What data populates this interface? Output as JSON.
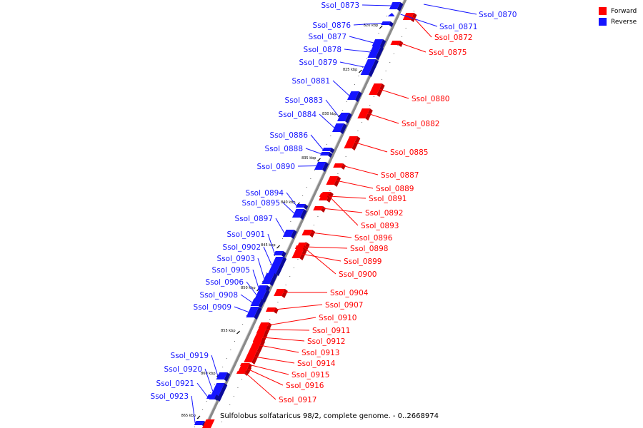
{
  "legend": {
    "forward_label": "Forward",
    "reverse_label": "Reverse",
    "forward_color": "#ff0000",
    "reverse_color": "#1515ff"
  },
  "caption": "Sulfolobus solfataricus 98/2, complete genome. - 0..2668974",
  "ticks": [
    "820 kbp",
    "825 kbp",
    "830 kbp",
    "835 kbp",
    "840 kbp",
    "845 kbp",
    "850 kbp",
    "855 kbp",
    "860 kbp",
    "865 kbp"
  ],
  "reverse_genes": [
    "Ssol_0873",
    "Ssol_0871",
    "Ssol_0870",
    "Ssol_0876",
    "Ssol_0877",
    "Ssol_0878",
    "Ssol_0879",
    "Ssol_0881",
    "Ssol_0883",
    "Ssol_0884",
    "Ssol_0886",
    "Ssol_0888",
    "Ssol_0890",
    "Ssol_0894",
    "Ssol_0895",
    "Ssol_0897",
    "Ssol_0901",
    "Ssol_0902",
    "Ssol_0903",
    "Ssol_0905",
    "Ssol_0906",
    "Ssol_0908",
    "Ssol_0909",
    "Ssol_0919",
    "Ssol_0920",
    "Ssol_0921",
    "Ssol_0923"
  ],
  "forward_genes": [
    "Ssol_0872",
    "Ssol_0875",
    "Ssol_0880",
    "Ssol_0882",
    "Ssol_0885",
    "Ssol_0887",
    "Ssol_0889",
    "Ssol_0891",
    "Ssol_0892",
    "Ssol_0893",
    "Ssol_0896",
    "Ssol_0898",
    "Ssol_0899",
    "Ssol_0900",
    "Ssol_0904",
    "Ssol_0907",
    "Ssol_0910",
    "Ssol_0911",
    "Ssol_0912",
    "Ssol_0913",
    "Ssol_0914",
    "Ssol_0915",
    "Ssol_0916",
    "Ssol_0917"
  ]
}
